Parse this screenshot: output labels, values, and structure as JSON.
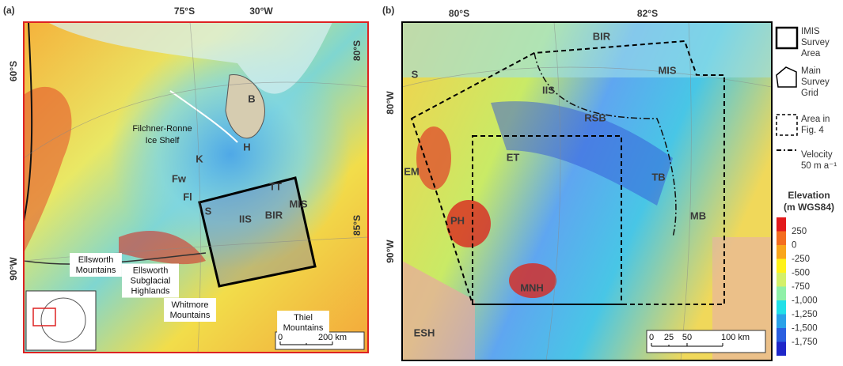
{
  "panel_a": {
    "label": "(a)",
    "graticule": [
      "75°S",
      "30°W",
      "80°S",
      "60°S",
      "85°S",
      "90°W"
    ],
    "ice_shelf": [
      "Filchner-Ronne",
      "Ice Shelf"
    ],
    "features": [
      "B",
      "H",
      "K",
      "Fw",
      "Fl",
      "TT",
      "BIR",
      "MIS",
      "IIS",
      "S"
    ],
    "callouts": [
      [
        "Ellsworth",
        "Mountains"
      ],
      [
        "Ellsworth",
        "Subglacial",
        "Highlands"
      ],
      [
        "Whitmore",
        "Mountains"
      ],
      [
        "Thiel",
        "Mountains"
      ]
    ],
    "scale": [
      "0",
      "200 km"
    ]
  },
  "panel_b": {
    "label": "(b)",
    "graticule": [
      "80°S",
      "82°S",
      "80°W",
      "90°W"
    ],
    "features": [
      "BIR",
      "MIS",
      "IIS",
      "RSB",
      "S",
      "EM",
      "ET",
      "TB",
      "PH",
      "MB",
      "MNH",
      "ESH"
    ],
    "scale": [
      "0",
      "25",
      "50",
      "100 km"
    ]
  },
  "legend": {
    "items": [
      [
        "IMIS",
        "Survey",
        "Area"
      ],
      [
        "Main",
        "Survey",
        "Grid"
      ],
      [
        "Area in",
        "Fig. 4"
      ],
      [
        "Velocity",
        "50 m a⁻¹"
      ]
    ],
    "elevation_title": [
      "Elevation",
      "(m WGS84)"
    ],
    "elevation_ticks": [
      "250",
      "0",
      "-250",
      "-500",
      "-750",
      "-1,000",
      "-1,250",
      "-1,500",
      "-1,750"
    ]
  }
}
